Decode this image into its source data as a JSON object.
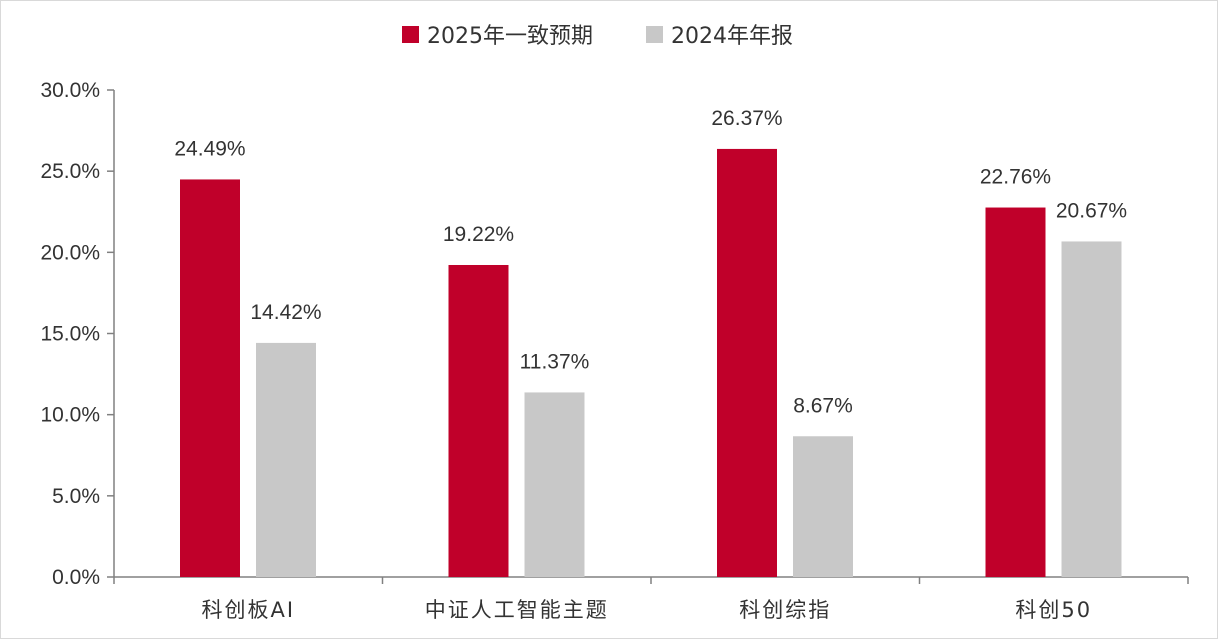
{
  "chart_data": {
    "type": "bar",
    "title": "",
    "xlabel": "",
    "ylabel": "",
    "categories": [
      "科创板AI",
      "中证人工智能主题",
      "科创综指",
      "科创50"
    ],
    "series": [
      {
        "name": "2025年一致预期",
        "color": "#c0002a",
        "values": [
          24.49,
          19.22,
          26.37,
          22.76
        ],
        "labels": [
          "24.49%",
          "19.22%",
          "26.37%",
          "22.76%"
        ]
      },
      {
        "name": "2024年年报",
        "color": "#c8c8c8",
        "values": [
          14.42,
          11.37,
          8.67,
          20.67
        ],
        "labels": [
          "14.42%",
          "11.37%",
          "8.67%",
          "20.67%"
        ]
      }
    ],
    "ylim": [
      0,
      30
    ],
    "yticks": [
      0,
      5,
      10,
      15,
      20,
      25,
      30
    ],
    "ytick_labels": [
      "0.0%",
      "5.0%",
      "10.0%",
      "15.0%",
      "20.0%",
      "25.0%",
      "30.0%"
    ],
    "grid": false,
    "legend_position": "top-center"
  }
}
